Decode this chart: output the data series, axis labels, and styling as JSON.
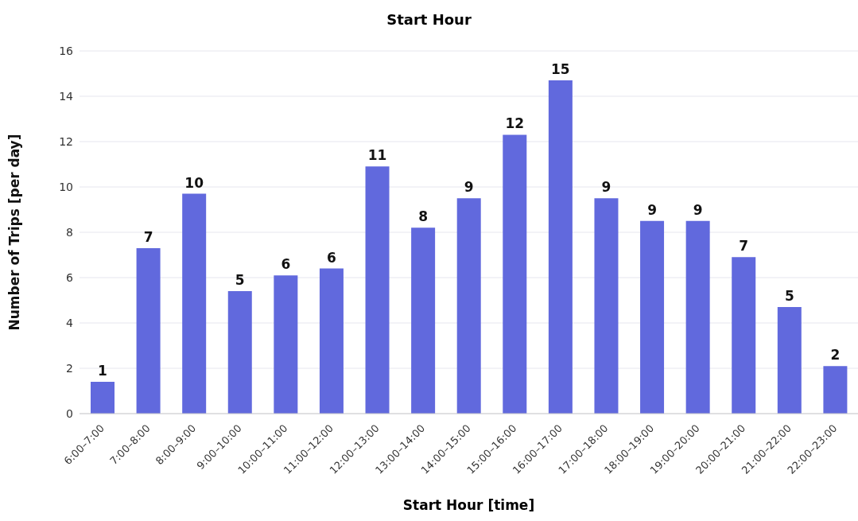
{
  "chart_data": {
    "type": "bar",
    "title": "Start Hour",
    "xlabel": "Start Hour [time]",
    "ylabel": "Number of Trips [per day]",
    "categories": [
      "6:00–7:00",
      "7:00–8:00",
      "8:00–9:00",
      "9:00–10:00",
      "10:00–11:00",
      "11:00–12:00",
      "12:00–13:00",
      "13:00–14:00",
      "14:00–15:00",
      "15:00–16:00",
      "16:00–17:00",
      "17:00–18:00",
      "18:00–19:00",
      "19:00–20:00",
      "20:00–21:00",
      "21:00–22:00",
      "22:00–23:00"
    ],
    "values": [
      1.4,
      7.3,
      9.7,
      5.4,
      6.1,
      6.4,
      10.9,
      8.2,
      9.5,
      12.3,
      14.7,
      9.5,
      8.5,
      8.5,
      6.9,
      4.7,
      2.1
    ],
    "value_labels": [
      "1",
      "7",
      "10",
      "5",
      "6",
      "6",
      "11",
      "8",
      "9",
      "12",
      "15",
      "9",
      "9",
      "9",
      "7",
      "5",
      "2"
    ],
    "color": "#6169dd",
    "ylim": [
      0,
      16
    ],
    "yticks": [
      0,
      2,
      4,
      6,
      8,
      10,
      12,
      14,
      16
    ],
    "grid": "y"
  }
}
